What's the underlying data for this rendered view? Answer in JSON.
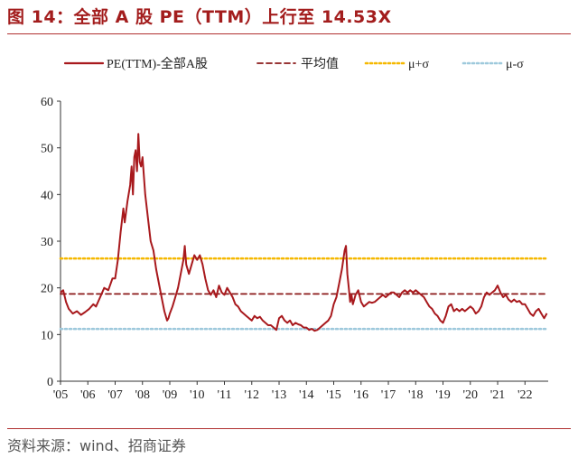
{
  "figure": {
    "title": "图 14：全部 A 股 PE（TTM）上行至 14.53X",
    "source": "资料来源：wind、招商证券"
  },
  "colors": {
    "title": "#a31d1d",
    "pe": "#a8191d",
    "mean": "#8b1a1a",
    "plus_sigma": "#f5b800",
    "minus_sigma": "#9ec9dc",
    "axis": "#333333"
  },
  "chart_data": {
    "type": "line",
    "title": "",
    "xlabel": "",
    "ylabel": "",
    "ylim": [
      0,
      60
    ],
    "yticks": [
      0,
      10,
      20,
      30,
      40,
      50,
      60
    ],
    "xlim": [
      2005.0,
      2022.85
    ],
    "xticks": [
      {
        "value": 2005,
        "label": "'05"
      },
      {
        "value": 2006,
        "label": "'06"
      },
      {
        "value": 2007,
        "label": "'07"
      },
      {
        "value": 2008,
        "label": "'08"
      },
      {
        "value": 2009,
        "label": "'09"
      },
      {
        "value": 2010,
        "label": "'10"
      },
      {
        "value": 2011,
        "label": "'11"
      },
      {
        "value": 2012,
        "label": "'12"
      },
      {
        "value": 2013,
        "label": "'13"
      },
      {
        "value": 2014,
        "label": "'14"
      },
      {
        "value": 2015,
        "label": "'15"
      },
      {
        "value": 2016,
        "label": "'16"
      },
      {
        "value": 2017,
        "label": "'17"
      },
      {
        "value": 2018,
        "label": "'18"
      },
      {
        "value": 2019,
        "label": "'19"
      },
      {
        "value": 2020,
        "label": "'20"
      },
      {
        "value": 2021,
        "label": "'21"
      },
      {
        "value": 2022,
        "label": "'22"
      }
    ],
    "grid": false,
    "legend_position": "top",
    "series": [
      {
        "name": "PE(TTM)-全部A股",
        "style": "solid",
        "points": [
          [
            2005.0,
            19.0
          ],
          [
            2005.1,
            19.5
          ],
          [
            2005.2,
            17.0
          ],
          [
            2005.3,
            15.5
          ],
          [
            2005.45,
            14.5
          ],
          [
            2005.6,
            15.0
          ],
          [
            2005.75,
            14.2
          ],
          [
            2005.9,
            14.8
          ],
          [
            2006.05,
            15.5
          ],
          [
            2006.2,
            16.5
          ],
          [
            2006.3,
            16.0
          ],
          [
            2006.45,
            18.0
          ],
          [
            2006.6,
            20.0
          ],
          [
            2006.75,
            19.5
          ],
          [
            2006.9,
            22.0
          ],
          [
            2007.0,
            22.0
          ],
          [
            2007.1,
            26.0
          ],
          [
            2007.2,
            32.0
          ],
          [
            2007.3,
            37.0
          ],
          [
            2007.35,
            34.0
          ],
          [
            2007.45,
            38.5
          ],
          [
            2007.55,
            42.0
          ],
          [
            2007.6,
            46.0
          ],
          [
            2007.65,
            40.0
          ],
          [
            2007.7,
            48.0
          ],
          [
            2007.75,
            49.5
          ],
          [
            2007.8,
            45.0
          ],
          [
            2007.85,
            53.0
          ],
          [
            2007.9,
            47.0
          ],
          [
            2007.95,
            46.0
          ],
          [
            2008.0,
            48.0
          ],
          [
            2008.05,
            44.0
          ],
          [
            2008.1,
            40.0
          ],
          [
            2008.2,
            35.0
          ],
          [
            2008.3,
            30.0
          ],
          [
            2008.4,
            28.0
          ],
          [
            2008.5,
            24.0
          ],
          [
            2008.6,
            21.0
          ],
          [
            2008.7,
            18.0
          ],
          [
            2008.8,
            15.0
          ],
          [
            2008.9,
            13.0
          ],
          [
            2008.95,
            13.5
          ],
          [
            2009.0,
            14.5
          ],
          [
            2009.1,
            16.0
          ],
          [
            2009.2,
            18.0
          ],
          [
            2009.3,
            20.0
          ],
          [
            2009.4,
            23.0
          ],
          [
            2009.5,
            26.0
          ],
          [
            2009.55,
            29.0
          ],
          [
            2009.6,
            25.0
          ],
          [
            2009.7,
            23.0
          ],
          [
            2009.8,
            25.0
          ],
          [
            2009.9,
            27.0
          ],
          [
            2010.0,
            26.0
          ],
          [
            2010.1,
            27.0
          ],
          [
            2010.2,
            25.0
          ],
          [
            2010.3,
            22.0
          ],
          [
            2010.4,
            19.5
          ],
          [
            2010.5,
            18.5
          ],
          [
            2010.6,
            19.5
          ],
          [
            2010.7,
            18.0
          ],
          [
            2010.8,
            20.5
          ],
          [
            2010.9,
            19.0
          ],
          [
            2011.0,
            18.5
          ],
          [
            2011.1,
            20.0
          ],
          [
            2011.2,
            19.0
          ],
          [
            2011.3,
            18.0
          ],
          [
            2011.4,
            16.5
          ],
          [
            2011.5,
            16.0
          ],
          [
            2011.6,
            15.0
          ],
          [
            2011.7,
            14.5
          ],
          [
            2011.8,
            14.0
          ],
          [
            2011.9,
            13.5
          ],
          [
            2012.0,
            13.0
          ],
          [
            2012.1,
            14.0
          ],
          [
            2012.2,
            13.5
          ],
          [
            2012.3,
            13.8
          ],
          [
            2012.4,
            13.0
          ],
          [
            2012.5,
            12.5
          ],
          [
            2012.6,
            12.0
          ],
          [
            2012.7,
            12.0
          ],
          [
            2012.8,
            11.5
          ],
          [
            2012.9,
            11.0
          ],
          [
            2013.0,
            13.5
          ],
          [
            2013.1,
            14.0
          ],
          [
            2013.2,
            13.0
          ],
          [
            2013.3,
            12.5
          ],
          [
            2013.4,
            13.0
          ],
          [
            2013.5,
            12.0
          ],
          [
            2013.6,
            12.5
          ],
          [
            2013.7,
            12.2
          ],
          [
            2013.8,
            12.0
          ],
          [
            2013.9,
            11.5
          ],
          [
            2014.0,
            11.5
          ],
          [
            2014.1,
            11.0
          ],
          [
            2014.2,
            11.2
          ],
          [
            2014.3,
            10.8
          ],
          [
            2014.4,
            11.0
          ],
          [
            2014.5,
            11.5
          ],
          [
            2014.6,
            12.0
          ],
          [
            2014.7,
            12.5
          ],
          [
            2014.8,
            13.0
          ],
          [
            2014.9,
            14.0
          ],
          [
            2015.0,
            16.5
          ],
          [
            2015.1,
            18.0
          ],
          [
            2015.2,
            21.0
          ],
          [
            2015.3,
            24.0
          ],
          [
            2015.4,
            28.0
          ],
          [
            2015.45,
            29.0
          ],
          [
            2015.5,
            23.0
          ],
          [
            2015.55,
            20.0
          ],
          [
            2015.6,
            17.0
          ],
          [
            2015.65,
            18.5
          ],
          [
            2015.7,
            16.5
          ],
          [
            2015.8,
            18.5
          ],
          [
            2015.9,
            19.5
          ],
          [
            2016.0,
            17.0
          ],
          [
            2016.1,
            16.0
          ],
          [
            2016.2,
            16.5
          ],
          [
            2016.3,
            17.0
          ],
          [
            2016.4,
            16.8
          ],
          [
            2016.5,
            17.0
          ],
          [
            2016.6,
            17.5
          ],
          [
            2016.7,
            18.0
          ],
          [
            2016.8,
            18.5
          ],
          [
            2016.9,
            18.0
          ],
          [
            2017.0,
            18.5
          ],
          [
            2017.1,
            19.0
          ],
          [
            2017.2,
            19.0
          ],
          [
            2017.3,
            18.5
          ],
          [
            2017.4,
            18.0
          ],
          [
            2017.5,
            19.0
          ],
          [
            2017.6,
            19.5
          ],
          [
            2017.7,
            19.0
          ],
          [
            2017.8,
            19.5
          ],
          [
            2017.9,
            19.0
          ],
          [
            2018.0,
            19.5
          ],
          [
            2018.1,
            19.0
          ],
          [
            2018.2,
            18.5
          ],
          [
            2018.3,
            18.0
          ],
          [
            2018.4,
            17.0
          ],
          [
            2018.5,
            16.0
          ],
          [
            2018.6,
            15.5
          ],
          [
            2018.7,
            14.5
          ],
          [
            2018.8,
            14.0
          ],
          [
            2018.9,
            13.0
          ],
          [
            2019.0,
            12.5
          ],
          [
            2019.1,
            14.0
          ],
          [
            2019.2,
            16.0
          ],
          [
            2019.3,
            16.5
          ],
          [
            2019.4,
            15.0
          ],
          [
            2019.5,
            15.5
          ],
          [
            2019.6,
            15.0
          ],
          [
            2019.7,
            15.5
          ],
          [
            2019.8,
            15.0
          ],
          [
            2019.9,
            15.5
          ],
          [
            2020.0,
            16.0
          ],
          [
            2020.1,
            15.5
          ],
          [
            2020.2,
            14.5
          ],
          [
            2020.3,
            15.0
          ],
          [
            2020.4,
            16.0
          ],
          [
            2020.5,
            18.0
          ],
          [
            2020.6,
            19.0
          ],
          [
            2020.7,
            18.5
          ],
          [
            2020.8,
            19.0
          ],
          [
            2020.9,
            19.5
          ],
          [
            2021.0,
            20.5
          ],
          [
            2021.1,
            19.0
          ],
          [
            2021.2,
            18.0
          ],
          [
            2021.3,
            18.5
          ],
          [
            2021.4,
            17.5
          ],
          [
            2021.5,
            17.0
          ],
          [
            2021.6,
            17.5
          ],
          [
            2021.7,
            17.0
          ],
          [
            2021.8,
            17.2
          ],
          [
            2021.9,
            16.5
          ],
          [
            2022.0,
            16.5
          ],
          [
            2022.1,
            15.5
          ],
          [
            2022.2,
            14.5
          ],
          [
            2022.3,
            14.0
          ],
          [
            2022.4,
            15.0
          ],
          [
            2022.5,
            15.5
          ],
          [
            2022.6,
            14.5
          ],
          [
            2022.7,
            13.5
          ],
          [
            2022.8,
            14.53
          ]
        ]
      },
      {
        "name": "平均值",
        "style": "dashed",
        "value": 18.7
      },
      {
        "name": "μ+σ",
        "style": "dotted",
        "value": 26.3
      },
      {
        "name": "μ-σ",
        "style": "dotted",
        "value": 11.2
      }
    ]
  }
}
